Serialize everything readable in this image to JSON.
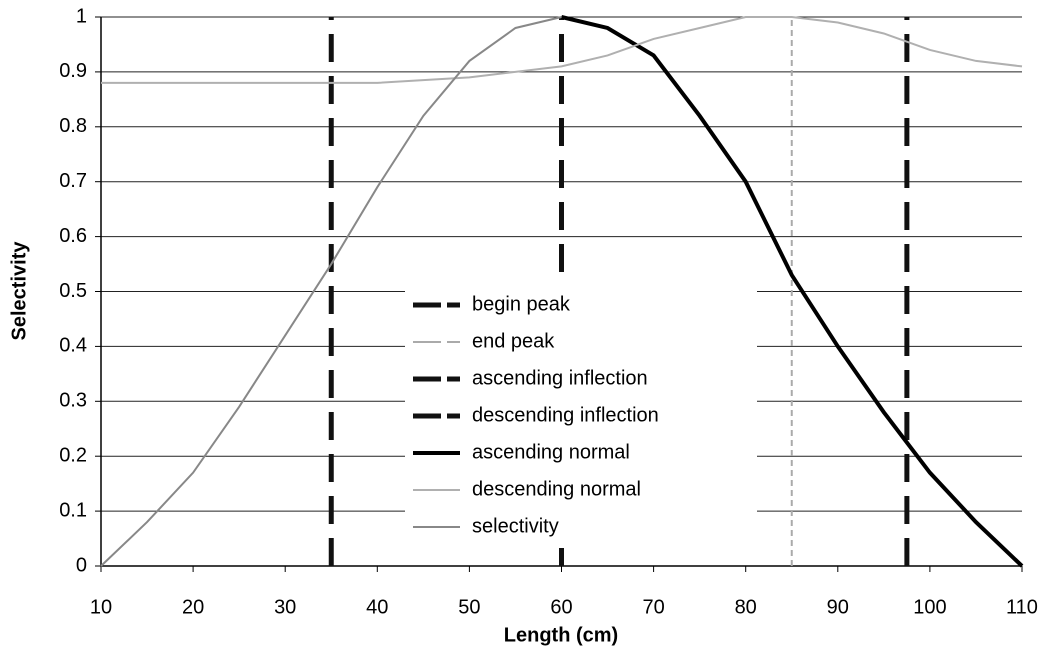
{
  "chart_data": {
    "type": "line",
    "x_label": "Length (cm)",
    "y_label": "Selectivity",
    "xlim": [
      10,
      110
    ],
    "ylim": [
      0,
      1
    ],
    "xticks": [
      10,
      20,
      30,
      40,
      50,
      60,
      70,
      80,
      90,
      100,
      110
    ],
    "yticks": [
      0,
      0.1,
      0.2,
      0.3,
      0.4,
      0.5,
      0.6,
      0.7,
      0.8,
      0.9,
      1
    ],
    "grid": true,
    "series": [
      {
        "name": "begin peak",
        "color": "#111111",
        "dash": "28,14",
        "width": 5,
        "x": [
          60,
          60
        ],
        "values": [
          0,
          1
        ]
      },
      {
        "name": "end peak",
        "color": "#aaaaaa",
        "dash": "6,4",
        "width": 2,
        "x": [
          85,
          85
        ],
        "values": [
          0,
          1
        ]
      },
      {
        "name": "ascending inflection",
        "color": "#111111",
        "dash": "28,14",
        "width": 5,
        "x": [
          35,
          35
        ],
        "values": [
          0,
          1
        ]
      },
      {
        "name": "descending inflection",
        "color": "#111111",
        "dash": "28,14",
        "width": 5,
        "x": [
          97.5,
          97.5
        ],
        "values": [
          0,
          1
        ]
      },
      {
        "name": "ascending normal",
        "color": "#000000",
        "dash": "none",
        "width": 4,
        "x": [
          60,
          65,
          70,
          75,
          80,
          85,
          90,
          95,
          100,
          105,
          110
        ],
        "values": [
          1,
          0.98,
          0.93,
          0.82,
          0.7,
          0.53,
          0.4,
          0.28,
          0.17,
          0.08,
          0
        ]
      },
      {
        "name": "descending normal",
        "color": "#b0b0b0",
        "dash": "none",
        "width": 2,
        "x": [
          10,
          20,
          30,
          40,
          50,
          60,
          65,
          70,
          75,
          80,
          85,
          90,
          95,
          100,
          105,
          110
        ],
        "values": [
          0.88,
          0.88,
          0.88,
          0.88,
          0.89,
          0.91,
          0.93,
          0.96,
          0.98,
          1,
          1,
          0.99,
          0.97,
          0.94,
          0.92,
          0.91
        ]
      },
      {
        "name": "selectivity",
        "color": "#888888",
        "dash": "none",
        "width": 2,
        "x": [
          10,
          15,
          20,
          25,
          30,
          35,
          40,
          45,
          50,
          55,
          60
        ],
        "values": [
          0,
          0.08,
          0.17,
          0.29,
          0.42,
          0.55,
          0.69,
          0.82,
          0.92,
          0.98,
          1
        ]
      }
    ]
  }
}
